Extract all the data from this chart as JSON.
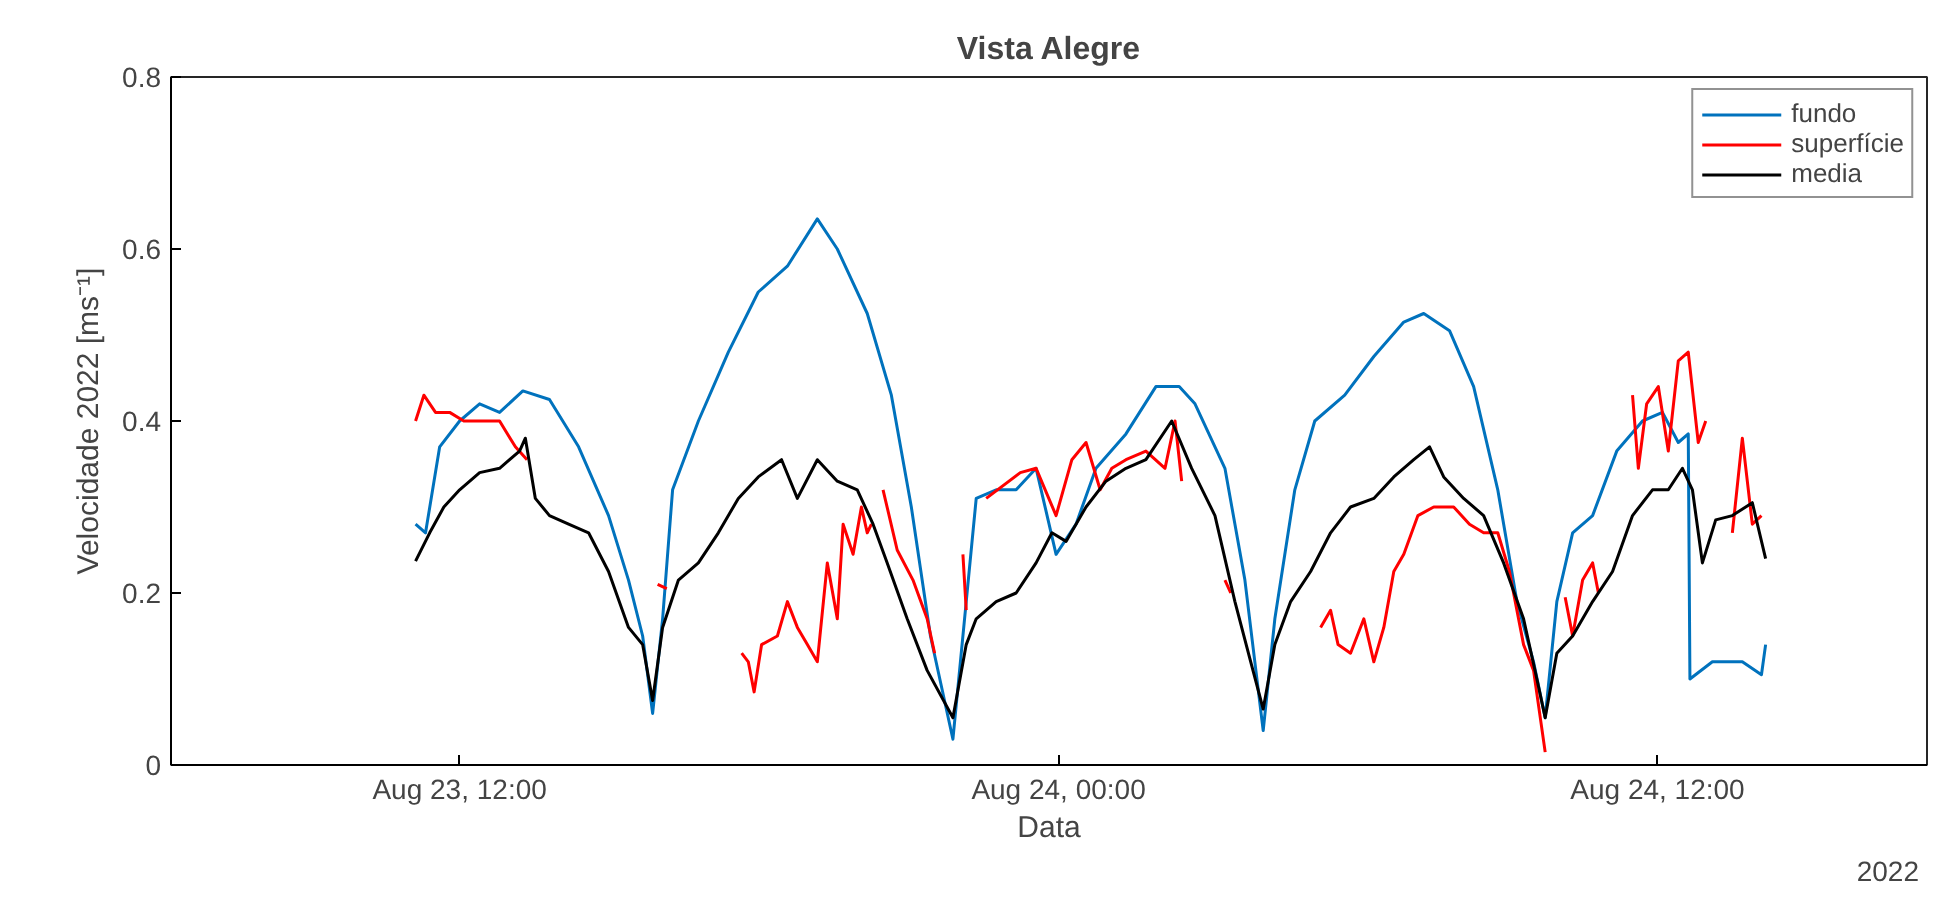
{
  "chart_data": {
    "type": "line",
    "title": "Vista Alegre",
    "xlabel": "Data",
    "ylabel": "Velocidade 2022 [ms⁻¹]",
    "xlim": [
      "2022-08-23T06:13",
      "2022-08-24T17:24"
    ],
    "xticks": [
      {
        "value": "2022-08-23T12:00",
        "label": "Aug 23, 12:00"
      },
      {
        "value": "2022-08-24T00:00",
        "label": "Aug 24, 00:00"
      },
      {
        "value": "2022-08-24T12:00",
        "label": "Aug 24, 12:00"
      }
    ],
    "ylim": [
      0,
      0.8
    ],
    "yticks": [
      0,
      0.2,
      0.4,
      0.6,
      0.8
    ],
    "grid": false,
    "legend": "top right",
    "line_style": "solid",
    "marker": "none",
    "annotations": [
      "2022"
    ],
    "series": [
      {
        "name": "fundo",
        "color": "#0072bd",
        "x": [
          "2022-08-23T11:07",
          "2022-08-23T11:19",
          "2022-08-23T11:36",
          "2022-08-23T12:00",
          "2022-08-23T12:24",
          "2022-08-23T12:48",
          "2022-08-23T13:16",
          "2022-08-23T13:48",
          "2022-08-23T14:23",
          "2022-08-23T14:59",
          "2022-08-23T15:23",
          "2022-08-23T15:40",
          "2022-08-23T15:52",
          "2022-08-23T16:04",
          "2022-08-23T16:16",
          "2022-08-23T16:47",
          "2022-08-23T17:23",
          "2022-08-23T17:59",
          "2022-08-23T18:34",
          "2022-08-23T19:10",
          "2022-08-23T19:34",
          "2022-08-23T20:10",
          "2022-08-23T20:39",
          "2022-08-23T21:03",
          "2022-08-23T21:26",
          "2022-08-23T21:53",
          "2022-08-23T22:09",
          "2022-08-23T22:21",
          "2022-08-23T22:45",
          "2022-08-23T23:09",
          "2022-08-23T23:33",
          "2022-08-23T23:57",
          "2022-08-24T00:21",
          "2022-08-24T00:45",
          "2022-08-24T01:21",
          "2022-08-24T01:57",
          "2022-08-24T02:25",
          "2022-08-24T02:44",
          "2022-08-24T03:20",
          "2022-08-24T03:44",
          "2022-08-24T04:06",
          "2022-08-24T04:20",
          "2022-08-24T04:44",
          "2022-08-24T05:08",
          "2022-08-24T05:44",
          "2022-08-24T06:19",
          "2022-08-24T06:55",
          "2022-08-24T07:19",
          "2022-08-24T07:50",
          "2022-08-24T08:19",
          "2022-08-24T08:48",
          "2022-08-24T09:11",
          "2022-08-24T09:31",
          "2022-08-24T09:45",
          "2022-08-24T09:59",
          "2022-08-24T10:18",
          "2022-08-24T10:42",
          "2022-08-24T11:11",
          "2022-08-24T11:42",
          "2022-08-24T12:06",
          "2022-08-24T12:25",
          "2022-08-24T12:37",
          "2022-08-24T12:39",
          "2022-08-24T13:06",
          "2022-08-24T13:42",
          "2022-08-24T14:05",
          "2022-08-24T14:10"
        ],
        "values": [
          0.28,
          0.27,
          0.37,
          0.4,
          0.42,
          0.41,
          0.435,
          0.425,
          0.37,
          0.29,
          0.215,
          0.15,
          0.06,
          0.17,
          0.32,
          0.4,
          0.48,
          0.55,
          0.58,
          0.635,
          0.6,
          0.525,
          0.43,
          0.3,
          0.15,
          0.03,
          0.19,
          0.31,
          0.32,
          0.32,
          0.345,
          0.245,
          0.28,
          0.345,
          0.385,
          0.44,
          0.44,
          0.42,
          0.345,
          0.215,
          0.04,
          0.17,
          0.32,
          0.4,
          0.43,
          0.475,
          0.515,
          0.525,
          0.505,
          0.44,
          0.32,
          0.19,
          0.12,
          0.055,
          0.19,
          0.27,
          0.29,
          0.365,
          0.4,
          0.41,
          0.375,
          0.385,
          0.1,
          0.12,
          0.12,
          0.105,
          0.14
        ]
      },
      {
        "name": "superfície",
        "color": "#ff0000",
        "x": [
          "2022-08-23T11:07",
          "2022-08-23T11:17",
          "2022-08-23T11:31",
          "2022-08-23T11:48",
          "2022-08-23T12:05",
          "2022-08-23T12:48",
          "2022-08-23T13:07",
          "2022-08-23T13:21",
          "2022-08-23T15:00",
          "2022-08-23T15:58",
          "2022-08-23T16:09",
          "2022-08-23T17:00",
          "2022-08-23T17:39",
          "2022-08-23T17:47",
          "2022-08-23T17:54",
          "2022-08-23T18:03",
          "2022-08-23T18:22",
          "2022-08-23T18:34",
          "2022-08-23T18:46",
          "2022-08-23T18:58",
          "2022-08-23T19:10",
          "2022-08-23T19:22",
          "2022-08-23T19:34",
          "2022-08-23T19:41",
          "2022-08-23T19:53",
          "2022-08-23T20:03",
          "2022-08-23T20:10",
          "2022-08-23T20:15",
          "2022-08-23T20:22",
          "2022-08-23T20:29",
          "2022-08-23T20:46",
          "2022-08-23T21:05",
          "2022-08-23T21:22",
          "2022-08-23T21:31",
          "2022-08-23T21:50",
          "2022-08-23T22:05",
          "2022-08-23T22:09",
          "2022-08-23T22:20",
          "2022-08-23T22:33",
          "2022-08-23T23:14",
          "2022-08-23T23:33",
          "2022-08-23T23:57",
          "2022-08-24T00:16",
          "2022-08-24T00:33",
          "2022-08-24T00:50",
          "2022-08-24T01:04",
          "2022-08-24T01:21",
          "2022-08-24T01:45",
          "2022-08-24T02:08",
          "2022-08-24T02:20",
          "2022-08-24T02:28",
          "2022-08-24T03:00",
          "2022-08-24T03:20",
          "2022-08-24T03:27",
          "2022-08-24T04:30",
          "2022-08-24T05:15",
          "2022-08-24T05:27",
          "2022-08-24T05:36",
          "2022-08-24T05:51",
          "2022-08-24T06:07",
          "2022-08-24T06:19",
          "2022-08-24T06:31",
          "2022-08-24T06:43",
          "2022-08-24T06:55",
          "2022-08-24T07:12",
          "2022-08-24T07:31",
          "2022-08-24T07:55",
          "2022-08-24T08:14",
          "2022-08-24T08:31",
          "2022-08-24T08:48",
          "2022-08-24T09:02",
          "2022-08-24T09:19",
          "2022-08-24T09:31",
          "2022-08-24T09:45",
          "2022-08-24T10:00",
          "2022-08-24T10:09",
          "2022-08-24T10:18",
          "2022-08-24T10:30",
          "2022-08-24T10:42",
          "2022-08-24T10:49",
          "2022-08-24T11:20",
          "2022-08-24T11:30",
          "2022-08-24T11:37",
          "2022-08-24T11:47",
          "2022-08-24T12:01",
          "2022-08-24T12:13",
          "2022-08-24T12:25",
          "2022-08-24T12:37",
          "2022-08-24T12:49",
          "2022-08-24T12:58",
          "2022-08-24T13:15",
          "2022-08-24T13:30",
          "2022-08-24T13:42",
          "2022-08-24T13:54",
          "2022-08-24T14:05"
        ],
        "values": [
          0.4,
          0.43,
          0.41,
          0.41,
          0.4,
          0.4,
          0.37,
          0.355,
          null,
          0.21,
          0.205,
          null,
          0.13,
          0.12,
          0.085,
          0.14,
          0.15,
          0.19,
          0.16,
          0.14,
          0.12,
          0.235,
          0.17,
          0.28,
          0.245,
          0.3,
          0.27,
          0.28,
          null,
          0.32,
          0.25,
          0.215,
          0.17,
          0.13,
          null,
          0.245,
          0.18,
          null,
          0.31,
          0.34,
          0.345,
          0.29,
          0.355,
          0.375,
          0.32,
          0.345,
          0.355,
          0.365,
          0.345,
          0.4,
          0.33,
          null,
          0.215,
          0.2,
          null,
          0.16,
          0.18,
          0.14,
          0.13,
          0.17,
          0.12,
          0.16,
          0.225,
          0.245,
          0.29,
          0.3,
          0.3,
          0.28,
          0.27,
          0.27,
          0.225,
          0.14,
          0.11,
          0.015,
          null,
          0.195,
          0.15,
          0.215,
          0.235,
          0.2,
          null,
          0.43,
          0.345,
          0.42,
          0.44,
          0.365,
          0.47,
          0.48,
          0.375,
          0.4,
          null,
          0.27,
          0.38,
          0.28,
          0.29
        ]
      },
      {
        "name": "media",
        "color": "#000000",
        "x": [
          "2022-08-23T11:07",
          "2022-08-23T11:24",
          "2022-08-23T11:41",
          "2022-08-23T12:00",
          "2022-08-23T12:24",
          "2022-08-23T12:48",
          "2022-08-23T13:12",
          "2022-08-23T13:19",
          "2022-08-23T13:31",
          "2022-08-23T13:48",
          "2022-08-23T14:11",
          "2022-08-23T14:35",
          "2022-08-23T14:59",
          "2022-08-23T15:23",
          "2022-08-23T15:40",
          "2022-08-23T15:52",
          "2022-08-23T16:04",
          "2022-08-23T16:23",
          "2022-08-23T16:47",
          "2022-08-23T17:11",
          "2022-08-23T17:35",
          "2022-08-23T17:59",
          "2022-08-23T18:27",
          "2022-08-23T18:46",
          "2022-08-23T19:10",
          "2022-08-23T19:34",
          "2022-08-23T19:58",
          "2022-08-23T20:17",
          "2022-08-23T20:34",
          "2022-08-23T20:58",
          "2022-08-23T21:22",
          "2022-08-23T21:53",
          "2022-08-23T22:09",
          "2022-08-23T22:21",
          "2022-08-23T22:45",
          "2022-08-23T23:09",
          "2022-08-23T23:33",
          "2022-08-23T23:52",
          "2022-08-24T00:09",
          "2022-08-24T00:33",
          "2022-08-24T00:57",
          "2022-08-24T01:21",
          "2022-08-24T01:45",
          "2022-08-24T02:16",
          "2022-08-24T02:40",
          "2022-08-24T03:08",
          "2022-08-24T03:32",
          "2022-08-24T03:51",
          "2022-08-24T04:06",
          "2022-08-24T04:20",
          "2022-08-24T04:39",
          "2022-08-24T05:03",
          "2022-08-24T05:27",
          "2022-08-24T05:51",
          "2022-08-24T06:19",
          "2022-08-24T06:43",
          "2022-08-24T07:07",
          "2022-08-24T07:26",
          "2022-08-24T07:43",
          "2022-08-24T08:07",
          "2022-08-24T08:31",
          "2022-08-24T08:55",
          "2022-08-24T09:19",
          "2022-08-24T09:35",
          "2022-08-24T09:45",
          "2022-08-24T09:59",
          "2022-08-24T10:18",
          "2022-08-24T10:42",
          "2022-08-24T11:06",
          "2022-08-24T11:30",
          "2022-08-24T11:54",
          "2022-08-24T12:13",
          "2022-08-24T12:30",
          "2022-08-24T12:42",
          "2022-08-24T12:54",
          "2022-08-24T13:10",
          "2022-08-24T13:30",
          "2022-08-24T13:54",
          "2022-08-24T14:10"
        ],
        "values": [
          0.237,
          0.27,
          0.3,
          0.32,
          0.34,
          0.345,
          0.365,
          0.38,
          0.31,
          0.29,
          0.28,
          0.27,
          0.225,
          0.16,
          0.14,
          0.075,
          0.16,
          0.215,
          0.235,
          0.27,
          0.31,
          0.335,
          0.355,
          0.31,
          0.355,
          0.33,
          0.32,
          0.28,
          0.235,
          0.17,
          0.11,
          0.055,
          0.14,
          0.17,
          0.19,
          0.2,
          0.235,
          0.27,
          0.26,
          0.3,
          0.33,
          0.345,
          0.355,
          0.4,
          0.345,
          0.29,
          0.19,
          0.12,
          0.065,
          0.14,
          0.19,
          0.225,
          0.27,
          0.3,
          0.31,
          0.335,
          0.355,
          0.37,
          0.335,
          0.31,
          0.29,
          0.235,
          0.17,
          0.1,
          0.055,
          0.13,
          0.15,
          0.19,
          0.225,
          0.29,
          0.32,
          0.32,
          0.345,
          0.32,
          0.235,
          0.285,
          0.29,
          0.305,
          0.24
        ]
      }
    ]
  }
}
